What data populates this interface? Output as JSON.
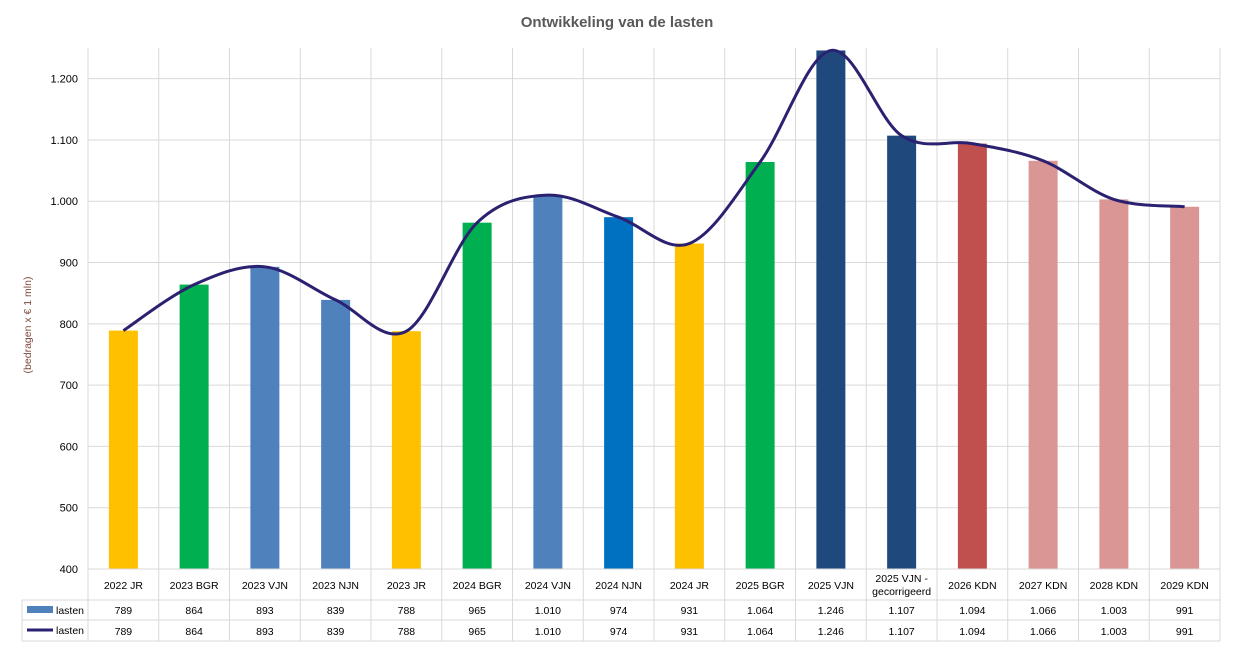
{
  "chart_data": {
    "type": "bar",
    "title": "Ontwikkeling van de lasten",
    "ylabel": "(bedragen x € 1 mln)",
    "xlabel": "",
    "ylim": [
      400,
      1250
    ],
    "yticks": [
      400,
      500,
      600,
      700,
      800,
      900,
      1000,
      1100,
      1200
    ],
    "ytick_labels": [
      "400",
      "500",
      "600",
      "700",
      "800",
      "900",
      "1.000",
      "1.100",
      "1.200"
    ],
    "grid": true,
    "legend": "data-table",
    "categories": [
      "2022 JR",
      "2023 BGR",
      "2023 VJN",
      "2023 NJN",
      "2023 JR",
      "2024 BGR",
      "2024 VJN",
      "2024 NJN",
      "2024 JR",
      "2025 BGR",
      "2025 VJN",
      "2025 VJN - gecorrigeerd",
      "2026 KDN",
      "2027 KDN",
      "2028 KDN",
      "2029 KDN"
    ],
    "bar_colors": [
      "#FFC000",
      "#00B050",
      "#4F81BD",
      "#4F81BD",
      "#FFC000",
      "#00B050",
      "#4F81BD",
      "#0070C0",
      "#FFC000",
      "#00B050",
      "#1F497D",
      "#1F497D",
      "#C0504D",
      "#DA9694",
      "#DA9694",
      "#DA9694"
    ],
    "series": [
      {
        "name": "lasten",
        "type": "bar",
        "color": "#4F81BD",
        "values": [
          789,
          864,
          893,
          839,
          788,
          965,
          1010,
          974,
          931,
          1064,
          1246,
          1107,
          1094,
          1066,
          1003,
          991
        ],
        "labels": [
          "789",
          "864",
          "893",
          "839",
          "788",
          "965",
          "1.010",
          "974",
          "931",
          "1.064",
          "1.246",
          "1.107",
          "1.094",
          "1.066",
          "1.003",
          "991"
        ]
      },
      {
        "name": "lasten",
        "type": "line",
        "color": "#2B2171",
        "values": [
          789,
          864,
          893,
          839,
          788,
          965,
          1010,
          974,
          931,
          1064,
          1246,
          1107,
          1094,
          1066,
          1003,
          991
        ],
        "labels": [
          "789",
          "864",
          "893",
          "839",
          "788",
          "965",
          "1.010",
          "974",
          "931",
          "1.064",
          "1.246",
          "1.107",
          "1.094",
          "1.066",
          "1.003",
          "991"
        ]
      }
    ]
  }
}
